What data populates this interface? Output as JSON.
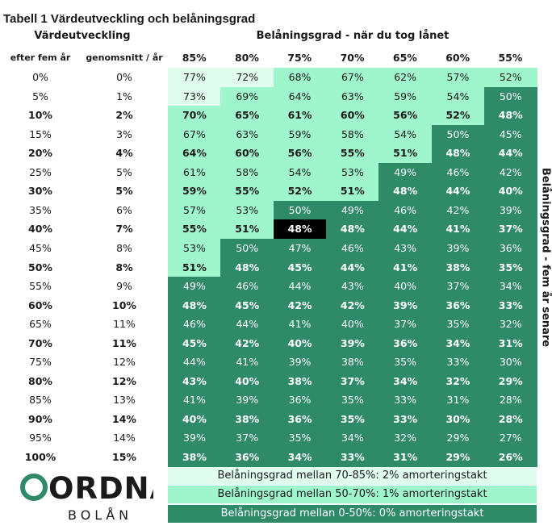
{
  "title": "Tabell 1 Värdeutveckling och belåningsgrad",
  "header_left": "Värdeutveckling",
  "header_right": "Belåningsgrad - när du tog lånet",
  "col_header_after": "efter fem år",
  "col_header_avg": "genomsnitt / år",
  "side_label": "Belåningsgrad - fem år senare",
  "colors": {
    "tier_high": "#e1fdef",
    "tier_mid": "#9ff5cc",
    "tier_low": "#2f8a68",
    "highlight": "#000000"
  },
  "chart_data": {
    "type": "table",
    "columns": [
      "85%",
      "80%",
      "75%",
      "70%",
      "65%",
      "60%",
      "55%"
    ],
    "rows": [
      {
        "after": "0%",
        "avg": "0%",
        "bold": false,
        "values": [
          "77%",
          "72%",
          "68%",
          "67%",
          "62%",
          "57%",
          "52%"
        ]
      },
      {
        "after": "5%",
        "avg": "1%",
        "bold": false,
        "values": [
          "73%",
          "69%",
          "64%",
          "63%",
          "59%",
          "54%",
          "50%"
        ]
      },
      {
        "after": "10%",
        "avg": "2%",
        "bold": true,
        "values": [
          "70%",
          "65%",
          "61%",
          "60%",
          "56%",
          "52%",
          "48%"
        ]
      },
      {
        "after": "15%",
        "avg": "3%",
        "bold": false,
        "values": [
          "67%",
          "63%",
          "59%",
          "58%",
          "54%",
          "50%",
          "45%"
        ]
      },
      {
        "after": "20%",
        "avg": "4%",
        "bold": true,
        "values": [
          "64%",
          "60%",
          "56%",
          "55%",
          "51%",
          "48%",
          "44%"
        ]
      },
      {
        "after": "25%",
        "avg": "5%",
        "bold": false,
        "values": [
          "61%",
          "58%",
          "54%",
          "53%",
          "49%",
          "46%",
          "42%"
        ]
      },
      {
        "after": "30%",
        "avg": "5%",
        "bold": true,
        "values": [
          "59%",
          "55%",
          "52%",
          "51%",
          "48%",
          "44%",
          "40%"
        ]
      },
      {
        "after": "35%",
        "avg": "6%",
        "bold": false,
        "values": [
          "57%",
          "53%",
          "50%",
          "49%",
          "46%",
          "42%",
          "39%"
        ]
      },
      {
        "after": "40%",
        "avg": "7%",
        "bold": true,
        "values": [
          "55%",
          "51%",
          "48%",
          "48%",
          "44%",
          "41%",
          "37%"
        ]
      },
      {
        "after": "45%",
        "avg": "8%",
        "bold": false,
        "values": [
          "53%",
          "50%",
          "47%",
          "46%",
          "43%",
          "39%",
          "36%"
        ]
      },
      {
        "after": "50%",
        "avg": "8%",
        "bold": true,
        "values": [
          "51%",
          "48%",
          "45%",
          "44%",
          "41%",
          "38%",
          "35%"
        ]
      },
      {
        "after": "55%",
        "avg": "9%",
        "bold": false,
        "values": [
          "49%",
          "46%",
          "44%",
          "43%",
          "40%",
          "37%",
          "34%"
        ]
      },
      {
        "after": "60%",
        "avg": "10%",
        "bold": true,
        "values": [
          "48%",
          "45%",
          "42%",
          "42%",
          "39%",
          "36%",
          "33%"
        ]
      },
      {
        "after": "65%",
        "avg": "11%",
        "bold": false,
        "values": [
          "46%",
          "44%",
          "41%",
          "40%",
          "37%",
          "35%",
          "32%"
        ]
      },
      {
        "after": "70%",
        "avg": "11%",
        "bold": true,
        "values": [
          "45%",
          "42%",
          "40%",
          "39%",
          "36%",
          "34%",
          "31%"
        ]
      },
      {
        "after": "75%",
        "avg": "12%",
        "bold": false,
        "values": [
          "44%",
          "41%",
          "39%",
          "38%",
          "35%",
          "33%",
          "30%"
        ]
      },
      {
        "after": "80%",
        "avg": "12%",
        "bold": true,
        "values": [
          "43%",
          "40%",
          "38%",
          "37%",
          "34%",
          "32%",
          "29%"
        ]
      },
      {
        "after": "85%",
        "avg": "13%",
        "bold": false,
        "values": [
          "41%",
          "39%",
          "36%",
          "35%",
          "33%",
          "31%",
          "28%"
        ]
      },
      {
        "after": "90%",
        "avg": "14%",
        "bold": true,
        "values": [
          "40%",
          "38%",
          "36%",
          "35%",
          "33%",
          "30%",
          "28%"
        ]
      },
      {
        "after": "95%",
        "avg": "14%",
        "bold": false,
        "values": [
          "39%",
          "37%",
          "35%",
          "34%",
          "32%",
          "29%",
          "27%"
        ]
      },
      {
        "after": "100%",
        "avg": "15%",
        "bold": true,
        "values": [
          "38%",
          "36%",
          "34%",
          "33%",
          "31%",
          "29%",
          "26%"
        ]
      }
    ],
    "highlight_cell": {
      "row": 8,
      "col": 2
    }
  },
  "legend": [
    {
      "text": "Belåningsgrad mellan 70-85%: 2% amorteringstakt",
      "tier": "high"
    },
    {
      "text": "Belåningsgrad mellan 50-70%: 1% amorteringstakt",
      "tier": "mid"
    },
    {
      "text": "Belåningsgrad mellan 0-50%: 0% amorteringstakt",
      "tier": "low"
    }
  ],
  "logo": {
    "word": "ORDNA",
    "sub": "BOLÅN"
  }
}
